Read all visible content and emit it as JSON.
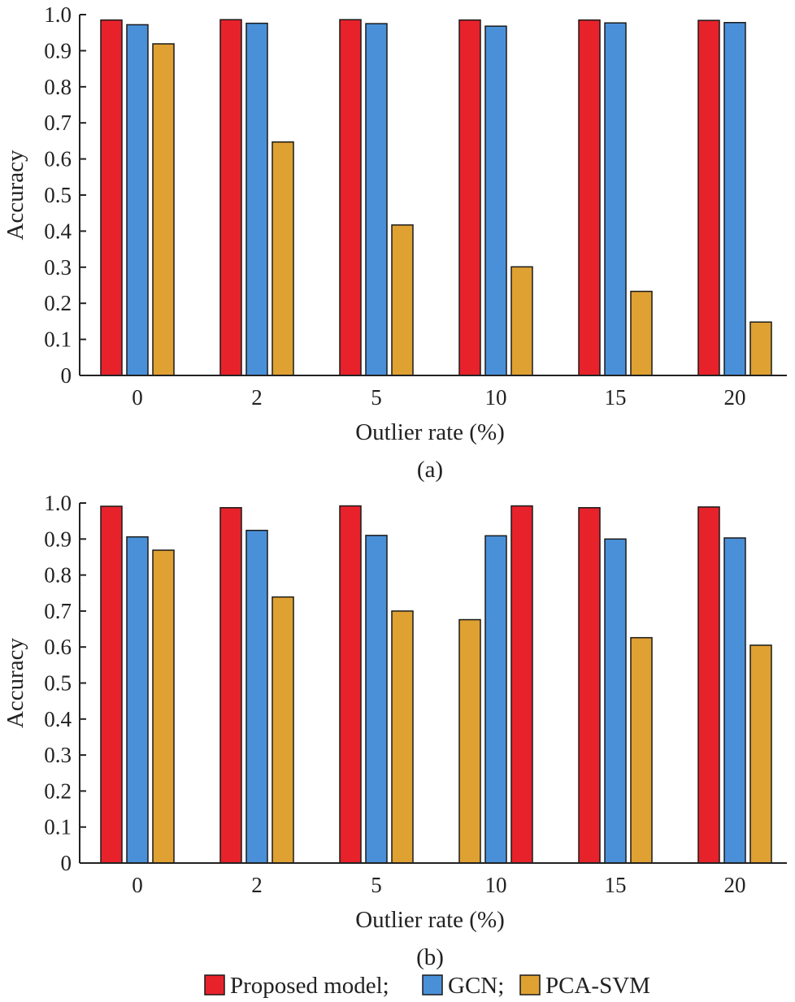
{
  "legend": {
    "items": [
      {
        "label": "Proposed model;",
        "color": "#e8222b"
      },
      {
        "label": "GCN;",
        "color": "#4a90d9"
      },
      {
        "label": "PCA-SVM",
        "color": "#dfa132"
      }
    ]
  },
  "chart_data": [
    {
      "type": "bar",
      "panel_label": "(a)",
      "xlabel": "Outlier rate (%)",
      "ylabel": "Accuracy",
      "ylim": [
        0,
        1.0
      ],
      "yticks": [
        "0",
        "0.1",
        "0.2",
        "0.3",
        "0.4",
        "0.5",
        "0.6",
        "0.7",
        "0.8",
        "0.9",
        "1.0"
      ],
      "categories": [
        "0",
        "2",
        "5",
        "10",
        "15",
        "20"
      ],
      "grid": false,
      "series": [
        {
          "name": "Proposed model",
          "color": "#e8222b",
          "values": [
            0.985,
            0.986,
            0.986,
            0.985,
            0.985,
            0.984
          ]
        },
        {
          "name": "GCN",
          "color": "#4a90d9",
          "values": [
            0.972,
            0.976,
            0.975,
            0.968,
            0.977,
            0.978
          ]
        },
        {
          "name": "PCA-SVM",
          "color": "#dfa132",
          "values": [
            0.919,
            0.647,
            0.417,
            0.301,
            0.233,
            0.148
          ]
        }
      ]
    },
    {
      "type": "bar",
      "panel_label": "(b)",
      "xlabel": "Outlier rate (%)",
      "ylabel": "Accuracy",
      "ylim": [
        0,
        1.0
      ],
      "yticks": [
        "0",
        "0.1",
        "0.2",
        "0.3",
        "0.4",
        "0.5",
        "0.6",
        "0.7",
        "0.8",
        "0.9",
        "1.0"
      ],
      "categories": [
        "0",
        "2",
        "5",
        "10",
        "15",
        "20"
      ],
      "grid": false,
      "series": [
        {
          "name": "Proposed model",
          "color": "#e8222b",
          "values": [
            0.991,
            0.987,
            0.992,
            0.992,
            0.987,
            0.989
          ]
        },
        {
          "name": "GCN",
          "color": "#4a90d9",
          "values": [
            0.906,
            0.924,
            0.91,
            0.909,
            0.9,
            0.903
          ]
        },
        {
          "name": "PCA-SVM",
          "color": "#dfa132",
          "values": [
            0.869,
            0.739,
            0.7,
            0.676,
            0.626,
            0.605
          ]
        }
      ],
      "bar_order": [
        [
          "Proposed model",
          "GCN",
          "PCA-SVM"
        ],
        [
          "Proposed model",
          "GCN",
          "PCA-SVM"
        ],
        [
          "Proposed model",
          "GCN",
          "PCA-SVM"
        ],
        [
          "PCA-SVM",
          "GCN",
          "Proposed model"
        ],
        [
          "Proposed model",
          "GCN",
          "PCA-SVM"
        ],
        [
          "Proposed model",
          "GCN",
          "PCA-SVM"
        ]
      ]
    }
  ]
}
